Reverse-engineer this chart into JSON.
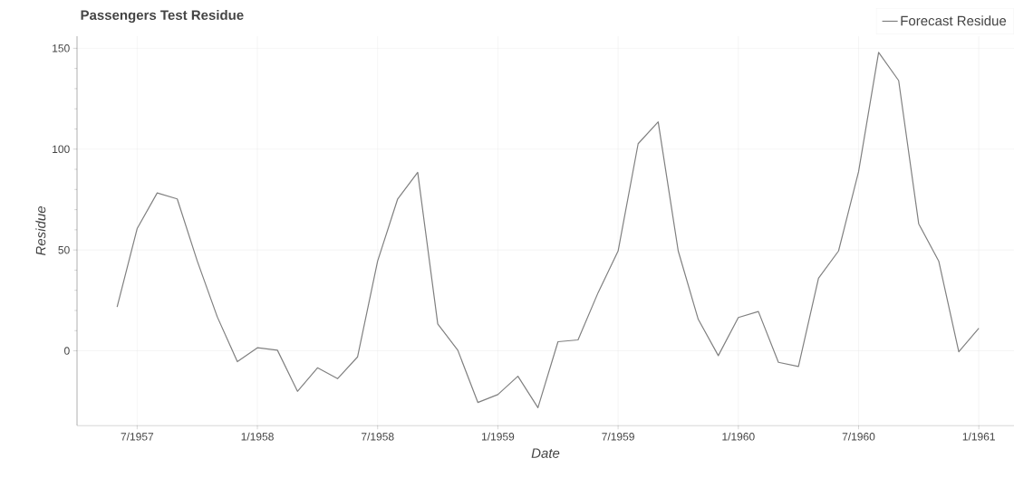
{
  "chart_data": {
    "type": "line",
    "title": "Passengers Test Residue",
    "xlabel": "Date",
    "ylabel": "Residue",
    "x": [
      "1957-06",
      "1957-07",
      "1957-08",
      "1957-09",
      "1957-10",
      "1957-11",
      "1957-12",
      "1958-01",
      "1958-02",
      "1958-03",
      "1958-04",
      "1958-05",
      "1958-06",
      "1958-07",
      "1958-08",
      "1958-09",
      "1958-10",
      "1958-11",
      "1958-12",
      "1959-01",
      "1959-02",
      "1959-03",
      "1959-04",
      "1959-05",
      "1959-06",
      "1959-07",
      "1959-08",
      "1959-09",
      "1959-10",
      "1959-11",
      "1959-12",
      "1960-01",
      "1960-02",
      "1960-03",
      "1960-04",
      "1960-05",
      "1960-06",
      "1960-07",
      "1960-08",
      "1960-09",
      "1960-10",
      "1960-11",
      "1960-12",
      "1961-01"
    ],
    "series": [
      {
        "name": "Forecast Residue",
        "color": "#808080",
        "values": [
          21.7,
          60.6,
          78.3,
          75.3,
          44.5,
          16.8,
          -5.4,
          1.5,
          0.3,
          -20.1,
          -8.4,
          -13.8,
          -3,
          44.5,
          75.3,
          88.5,
          13.3,
          0.3,
          -25.6,
          -21.7,
          -12.6,
          -28.2,
          4.5,
          5.4,
          28.8,
          49.5,
          102.7,
          113.5,
          49.5,
          15.6,
          -2.4,
          16.5,
          19.5,
          -5.7,
          -7.8,
          36,
          49.5,
          88.8,
          148,
          134,
          63,
          44.5,
          -0.5,
          11.2
        ]
      }
    ],
    "xlim": [
      "1957-04",
      "1961-02-24"
    ],
    "ylim": [
      -37,
      156
    ],
    "xticks": [
      {
        "value": "1957-07",
        "label": "7/1957"
      },
      {
        "value": "1958-01",
        "label": "1/1958"
      },
      {
        "value": "1958-07",
        "label": "7/1958"
      },
      {
        "value": "1959-01",
        "label": "1/1959"
      },
      {
        "value": "1959-07",
        "label": "7/1959"
      },
      {
        "value": "1960-01",
        "label": "1/1960"
      },
      {
        "value": "1960-07",
        "label": "7/1960"
      },
      {
        "value": "1961-01",
        "label": "1/1961"
      }
    ],
    "yticks": [
      0,
      50,
      100,
      150
    ],
    "grid": true,
    "legend": "top right",
    "marker": "none",
    "line_style": "solid"
  }
}
